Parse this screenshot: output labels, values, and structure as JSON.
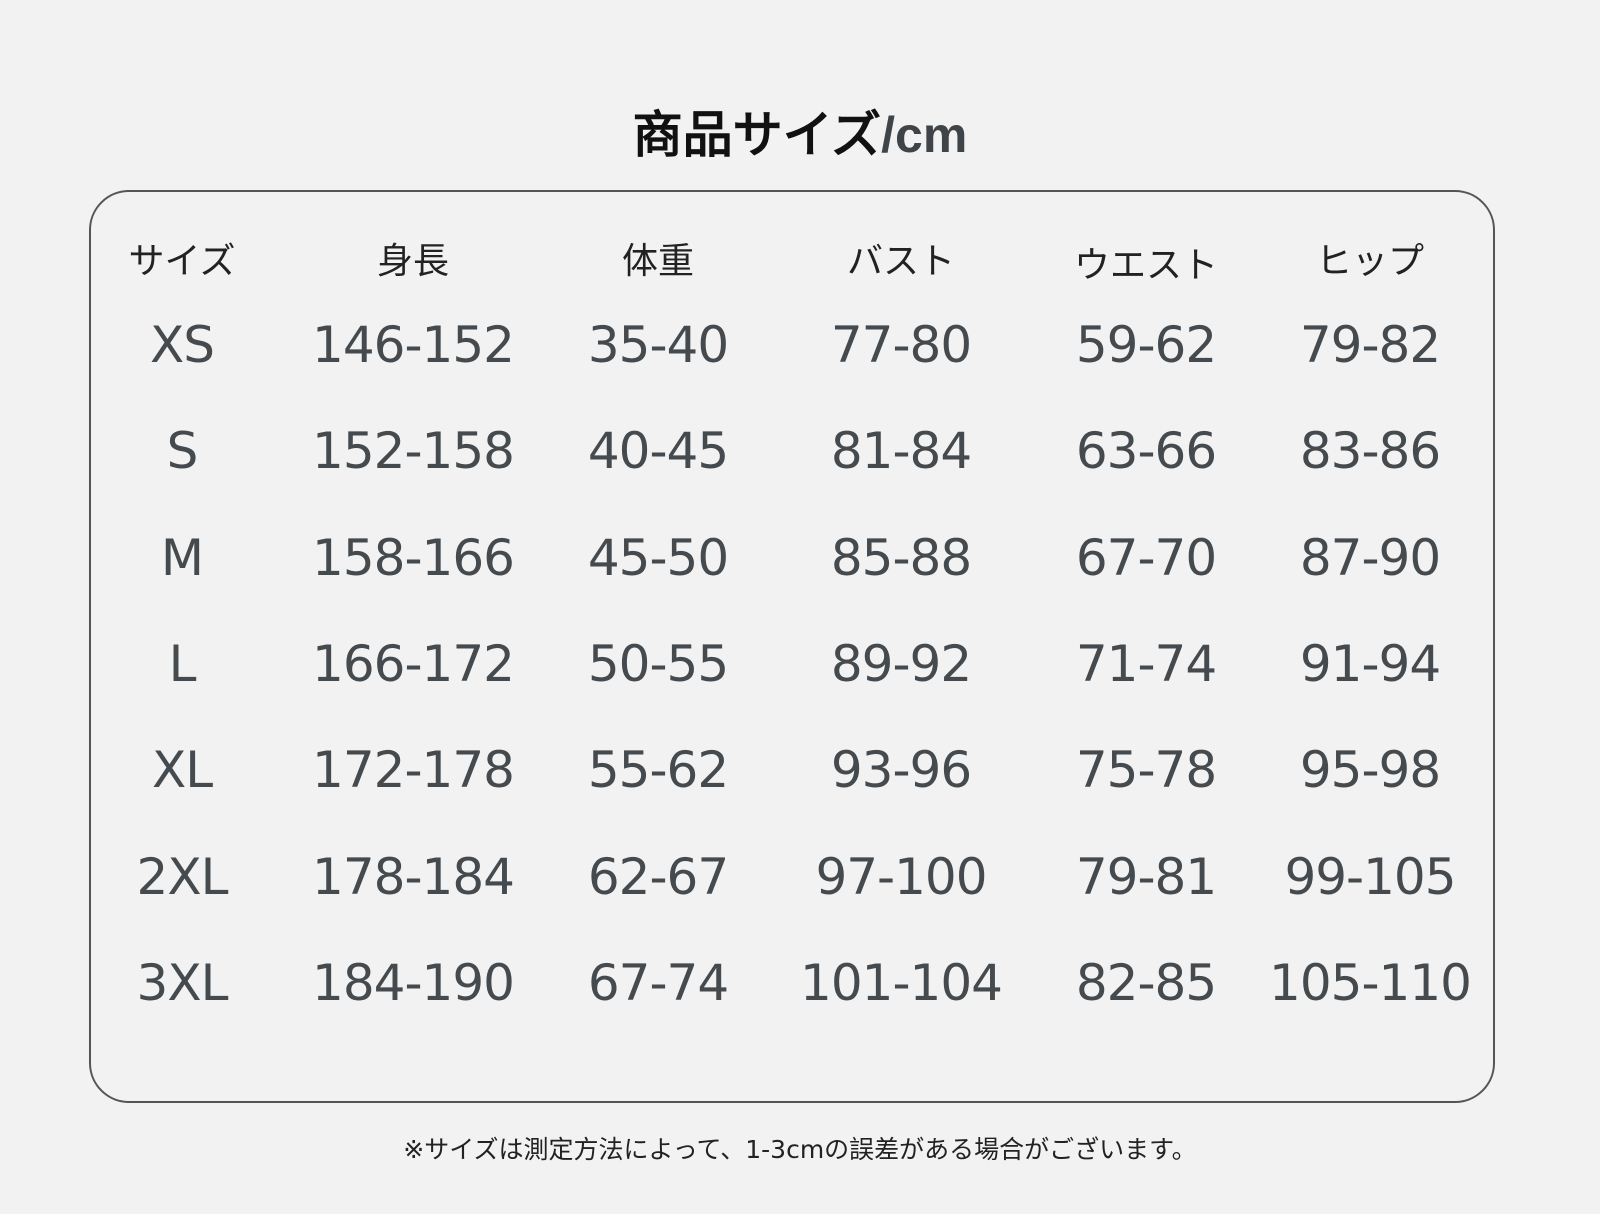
{
  "title": {
    "main": "商品サイズ",
    "unit": "/cm"
  },
  "table": {
    "headers": [
      "サイズ",
      "身長",
      "体重",
      "バスト",
      "ウエスト",
      "ヒップ"
    ],
    "rows": [
      [
        "XS",
        "146-152",
        "35-40",
        "77-80",
        "59-62",
        "79-82"
      ],
      [
        "S",
        "152-158",
        "40-45",
        "81-84",
        "63-66",
        "83-86"
      ],
      [
        "M",
        "158-166",
        "45-50",
        "85-88",
        "67-70",
        "87-90"
      ],
      [
        "L",
        "166-172",
        "50-55",
        "89-92",
        "71-74",
        "91-94"
      ],
      [
        "XL",
        "172-178",
        "55-62",
        "93-96",
        "75-78",
        "95-98"
      ],
      [
        "2XL",
        "178-184",
        "62-67",
        "97-100",
        "79-81",
        "99-105"
      ],
      [
        "3XL",
        "184-190",
        "67-74",
        "101-104",
        "82-85",
        "105-110"
      ]
    ]
  },
  "note": "※サイズは測定方法によって、1-3cmの誤差がある場合がございます。"
}
